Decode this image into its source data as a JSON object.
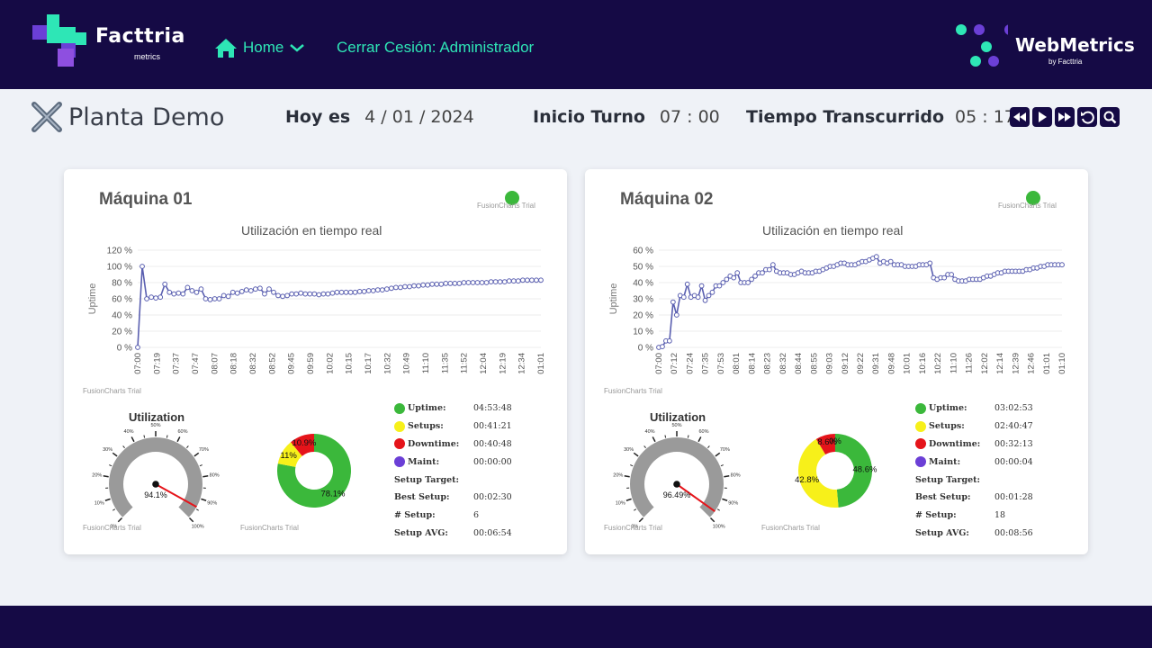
{
  "header": {
    "brand_name": "Facttria",
    "brand_sub": "metrics",
    "home_label": "Home",
    "logout_label": "Cerrar Cesión: Administrador",
    "wm_name": "WebMetrics",
    "wm_sub": "by Facttria"
  },
  "plant": {
    "title": "Planta Demo"
  },
  "info": {
    "today_label": "Hoy es",
    "today_value": "4 / 01 / 2024",
    "shift_label": "Inicio Turno",
    "shift_value": "07 :  00",
    "elapsed_label": "Tiempo Transcurrido",
    "elapsed_value": "05 :  17"
  },
  "controls": [
    "fast-backward-icon",
    "play-icon",
    "fast-forward-icon",
    "refresh-icon",
    "search-icon"
  ],
  "colors": {
    "uptime": "#3bb83b",
    "setups": "#f7f01a",
    "downtime": "#e5141a",
    "maint": "#6b3fd6",
    "line": "#5a5fb0",
    "navy": "#150a45",
    "accent": "#2ee6b6"
  },
  "trial_text": "FusionCharts Trial",
  "machines": [
    {
      "title": "Máquina 01",
      "line_title": "Utilización  en tiempo real",
      "ylabel": "Uptime",
      "stats": [
        {
          "label": "Uptime:",
          "value": "04:53:48",
          "color": "#3bb83b"
        },
        {
          "label": "Setups:",
          "value": "00:41:21",
          "color": "#f7f01a"
        },
        {
          "label": "Downtime:",
          "value": "00:40:48",
          "color": "#e5141a"
        },
        {
          "label": "Maint:",
          "value": "00:00:00",
          "color": "#6b3fd6"
        },
        {
          "label": "Setup Target:",
          "value": ""
        },
        {
          "label": "Best Setup:",
          "value": "00:02:30"
        },
        {
          "label": "# Setup:",
          "value": "6"
        },
        {
          "label": "Setup AVG:",
          "value": "00:06:54"
        }
      ]
    },
    {
      "title": "Máquina 02",
      "line_title": "Utilización  en tiempo real",
      "ylabel": "Uptime",
      "stats": [
        {
          "label": "Uptime:",
          "value": "03:02:53",
          "color": "#3bb83b"
        },
        {
          "label": "Setups:",
          "value": "02:40:47",
          "color": "#f7f01a"
        },
        {
          "label": "Downtime:",
          "value": "00:32:13",
          "color": "#e5141a"
        },
        {
          "label": "Maint:",
          "value": "00:00:04",
          "color": "#6b3fd6"
        },
        {
          "label": "Setup Target:",
          "value": ""
        },
        {
          "label": "Best Setup:",
          "value": "00:01:28"
        },
        {
          "label": "# Setup:",
          "value": "18"
        },
        {
          "label": "Setup AVG:",
          "value": "00:08:56"
        }
      ]
    }
  ],
  "chart_data": [
    {
      "type": "line",
      "title": "Utilización  en tiempo real",
      "ylabel": "Uptime",
      "ylim": [
        0,
        120
      ],
      "yticks": [
        "0 %",
        "20 %",
        "40 %",
        "60 %",
        "80 %",
        "100 %",
        "120 %"
      ],
      "xticks": [
        "07:00",
        "07:19",
        "07:37",
        "07:47",
        "08:07",
        "08:18",
        "08:32",
        "08:52",
        "09:45",
        "09:59",
        "10:02",
        "10:15",
        "10:17",
        "10:32",
        "10:49",
        "11:10",
        "11:35",
        "11:52",
        "12:04",
        "12:19",
        "12:34",
        "01:01"
      ],
      "values": [
        0,
        100,
        60,
        62,
        61,
        62,
        78,
        68,
        66,
        67,
        66,
        74,
        70,
        68,
        72,
        60,
        59,
        60,
        60,
        64,
        63,
        68,
        67,
        69,
        71,
        70,
        72,
        73,
        66,
        72,
        68,
        64,
        63,
        64,
        66,
        66,
        67,
        66,
        66,
        66,
        65,
        66,
        66,
        67,
        68,
        68,
        68,
        68,
        68,
        69,
        69,
        70,
        70,
        71,
        71,
        72,
        73,
        74,
        74,
        75,
        75,
        76,
        76,
        77,
        77,
        78,
        78,
        78,
        79,
        79,
        79,
        79,
        80,
        80,
        80,
        80,
        80,
        80,
        81,
        81,
        81,
        81,
        82,
        82,
        82,
        83,
        83,
        83,
        83,
        83
      ]
    },
    {
      "type": "gauge",
      "title": "Utilization",
      "value": 94.1,
      "value_label": "94.1%",
      "range": [
        0,
        100
      ],
      "tick_labels": [
        "0%",
        "10%",
        "20%",
        "30%",
        "40%",
        "50%",
        "60%",
        "70%",
        "80%",
        "90%",
        "100%"
      ]
    },
    {
      "type": "pie",
      "donut": true,
      "slices": [
        {
          "name": "Uptime",
          "value": 78.1,
          "label": "78.1%",
          "color": "#3bb83b"
        },
        {
          "name": "Setups",
          "value": 11,
          "label": "11%",
          "color": "#f7f01a"
        },
        {
          "name": "Downtime",
          "value": 10.9,
          "label": "10.9%",
          "color": "#e5141a"
        }
      ]
    },
    {
      "type": "line",
      "title": "Utilización  en tiempo real",
      "ylabel": "Uptime",
      "ylim": [
        0,
        60
      ],
      "yticks": [
        "0 %",
        "10 %",
        "20 %",
        "30 %",
        "40 %",
        "50 %",
        "60 %"
      ],
      "xticks": [
        "07:00",
        "07:12",
        "07:24",
        "07:35",
        "07:53",
        "08:01",
        "08:14",
        "08:23",
        "08:32",
        "08:44",
        "08:55",
        "09:03",
        "09:12",
        "09:22",
        "09:31",
        "09:48",
        "10:01",
        "10:16",
        "10:22",
        "11:10",
        "11:26",
        "12:02",
        "12:14",
        "12:39",
        "12:46",
        "01:01",
        "01:10"
      ],
      "values": [
        0,
        0.5,
        4,
        4,
        28,
        20,
        32,
        31,
        39,
        31,
        32,
        31,
        38,
        29,
        32,
        34,
        38,
        38,
        40,
        42,
        44,
        43,
        46,
        40,
        40,
        40,
        42,
        44,
        46,
        46,
        48,
        48,
        51,
        47,
        46,
        46,
        46,
        45,
        45,
        46,
        47,
        46,
        46,
        46,
        47,
        47,
        48,
        49,
        50,
        50,
        51,
        52,
        52,
        51,
        51,
        51,
        52,
        53,
        53,
        54,
        55,
        56,
        52,
        53,
        52,
        53,
        51,
        51,
        51,
        50,
        50,
        50,
        50,
        51,
        51,
        51,
        52,
        43,
        42,
        43,
        43,
        45,
        45,
        42,
        41,
        41,
        41,
        42,
        42,
        42,
        42,
        43,
        44,
        44,
        45,
        46,
        46,
        47,
        47,
        47,
        47,
        47,
        47,
        48,
        48,
        49,
        49,
        50,
        50,
        51,
        51,
        51,
        51,
        51
      ]
    },
    {
      "type": "gauge",
      "title": "Utilization",
      "value": 96.49,
      "value_label": "96.49%",
      "range": [
        0,
        100
      ],
      "tick_labels": [
        "0%",
        "10%",
        "20%",
        "30%",
        "40%",
        "50%",
        "60%",
        "70%",
        "80%",
        "90%",
        "100%"
      ]
    },
    {
      "type": "pie",
      "donut": true,
      "slices": [
        {
          "name": "Uptime",
          "value": 48.6,
          "label": "48.6%",
          "color": "#3bb83b"
        },
        {
          "name": "Setups",
          "value": 42.8,
          "label": "42.8%",
          "color": "#f7f01a"
        },
        {
          "name": "Downtime",
          "value": 8.6,
          "label": "8.6%",
          "color": "#e5141a"
        },
        {
          "name": "Maint",
          "value": 0.02,
          "label": "0%",
          "color": "#6b3fd6"
        }
      ]
    }
  ]
}
